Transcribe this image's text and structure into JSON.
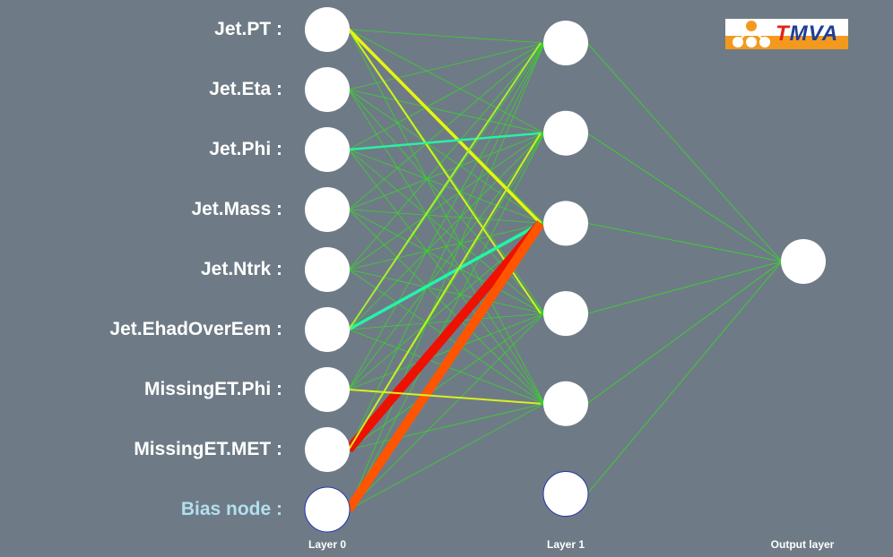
{
  "diagram": {
    "layers": [
      {
        "name": "Layer 0",
        "nodes": [
          {
            "label": "Jet.PT :"
          },
          {
            "label": "Jet.Eta :"
          },
          {
            "label": "Jet.Phi :"
          },
          {
            "label": "Jet.Mass :"
          },
          {
            "label": "Jet.Ntrk :"
          },
          {
            "label": "Jet.EhadOverEem :"
          },
          {
            "label": "MissingET.Phi :"
          },
          {
            "label": "MissingET.MET :"
          },
          {
            "label": "Bias node :",
            "is_bias": true
          }
        ]
      },
      {
        "name": "Layer 1",
        "node_count": 6,
        "bias_index": 5
      },
      {
        "name": "Output layer",
        "node_count": 1
      }
    ],
    "strong_connections": [
      {
        "from": 0,
        "to": 2,
        "color": "#e8f50f",
        "width": 3.5
      },
      {
        "from": 0,
        "to": 3,
        "color": "#d4f020",
        "width": 2
      },
      {
        "from": 2,
        "to": 1,
        "color": "#2af0a0",
        "width": 2.5
      },
      {
        "from": 5,
        "to": 2,
        "color": "#22f5a8",
        "width": 3.5
      },
      {
        "from": 7,
        "to": 2,
        "color": "#ee1100",
        "width": 10
      },
      {
        "from": 8,
        "to": 2,
        "color": "#ff5500",
        "width": 10
      },
      {
        "from": 6,
        "to": 4,
        "color": "#d8f020",
        "width": 2
      },
      {
        "from": 5,
        "to": 0,
        "color": "#a8ee30",
        "width": 2
      },
      {
        "from": 7,
        "to": 1,
        "color": "#c8f020",
        "width": 2
      }
    ],
    "colors": {
      "background": "#6e7b86",
      "weak_link": "#33dd22",
      "node_fill": "#ffffff",
      "bias_label": "#b2dfee"
    }
  },
  "logo": {
    "t": "T",
    "rest": "MVA"
  }
}
